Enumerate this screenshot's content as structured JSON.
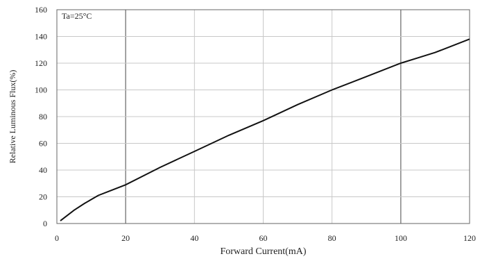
{
  "chart_data": {
    "type": "line",
    "title": "",
    "annotation": "Ta=25°C",
    "xlabel": "Forward Current(mA)",
    "ylabel": "Relative Luminous Flux(%)",
    "xlim": [
      0,
      120
    ],
    "ylim": [
      0,
      160
    ],
    "xticks": [
      0,
      20,
      40,
      60,
      80,
      100,
      120
    ],
    "yticks": [
      0,
      20,
      40,
      60,
      80,
      100,
      120,
      140,
      160
    ],
    "grid": true,
    "series": [
      {
        "x": [
          1,
          3,
          5,
          8,
          10,
          12,
          15,
          20,
          30,
          40,
          50,
          60,
          70,
          80,
          90,
          100,
          105,
          110,
          120
        ],
        "y": [
          2,
          6,
          10,
          15,
          18,
          21,
          24,
          29,
          42,
          54,
          66,
          77,
          89,
          100,
          110,
          120,
          124,
          128,
          138
        ]
      }
    ]
  },
  "colors": {
    "line": "#111111",
    "grid": "#c8c8c8",
    "frame": "#666666"
  }
}
